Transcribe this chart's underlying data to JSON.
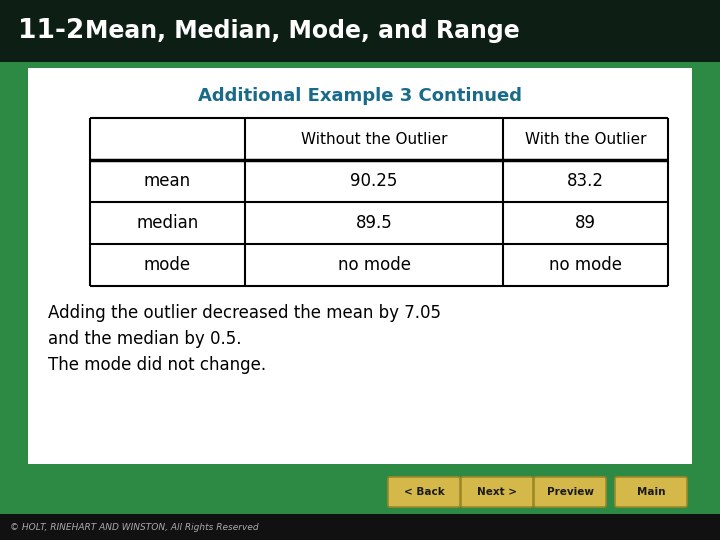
{
  "header_bg": "#0d1f15",
  "header_text_num": "11-2",
  "header_text_title": "Mean, Median, Mode, and Range",
  "header_text_color": "#ffffff",
  "content_bg": "#ffffff",
  "slide_bg": "#2d8a45",
  "subtitle": "Additional Example 3 Continued",
  "subtitle_color": "#1a6b8a",
  "table_headers": [
    "",
    "Without the Outlier",
    "With the Outlier"
  ],
  "table_rows": [
    [
      "mean",
      "90.25",
      "83.2"
    ],
    [
      "median",
      "89.5",
      "89"
    ],
    [
      "mode",
      "no mode",
      "no mode"
    ]
  ],
  "body_text1": "Adding the outlier decreased the mean by 7.05\nand the median by 0.5.",
  "body_text2": "The mode did not change.",
  "footer_text": "© HOLT, RINEHART AND WINSTON, All Rights Reserved",
  "footer_bg": "#111111",
  "footer_text_color": "#aaaaaa",
  "button_bg": "#d4b84a",
  "button_border": "#a08828",
  "button_text_color": "#1a1a1a",
  "buttons": [
    "< Back",
    "Next >",
    "Preview ⌂",
    "Main ⌂"
  ]
}
